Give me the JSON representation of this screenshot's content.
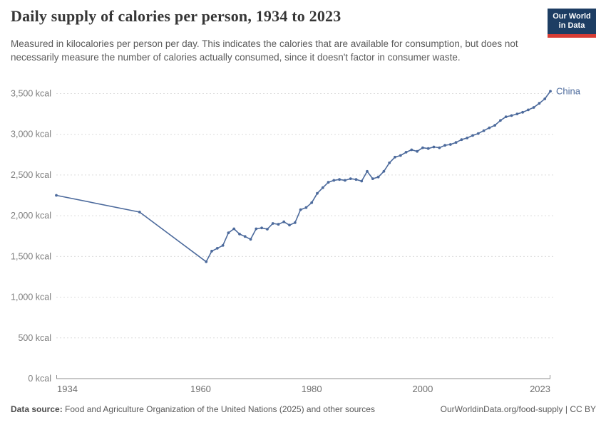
{
  "header": {
    "title": "Daily supply of calories per person, 1934 to 2023",
    "subtitle": "Measured in kilocalories per person per day. This indicates the calories that are available for consumption, but does not necessarily measure the number of calories actually consumed, since it doesn't factor in consumer waste.",
    "logo": {
      "line1": "Our World",
      "line2": "in Data"
    }
  },
  "colors": {
    "line": "#4c6a9c",
    "gridline": "#dcdcdc",
    "axis": "#8f8f8f",
    "y_label": "#7e7e7e",
    "x_label": "#6e6e6e",
    "logo_navy": "#1d3d63",
    "logo_red": "#d73c34"
  },
  "chart_data": {
    "type": "line",
    "title": "Daily supply of calories per person, 1934 to 2023",
    "unit": "kcal",
    "xlim": [
      1934,
      2023
    ],
    "ylim": [
      0,
      3500
    ],
    "x_ticks": [
      1934,
      1960,
      1980,
      2000,
      2023
    ],
    "y_ticks": [
      0,
      500,
      1000,
      1500,
      2000,
      2500,
      3000,
      3500
    ],
    "grid": "dashed-horizontal",
    "legend_position": "end-of-line-label",
    "end_label": "China",
    "series": [
      {
        "name": "China",
        "color": "#4c6a9c",
        "points": [
          [
            1934,
            2250
          ],
          [
            1949,
            2045
          ],
          [
            1961,
            1435
          ],
          [
            1962,
            1565
          ],
          [
            1963,
            1600
          ],
          [
            1964,
            1635
          ],
          [
            1965,
            1790
          ],
          [
            1966,
            1840
          ],
          [
            1967,
            1775
          ],
          [
            1968,
            1745
          ],
          [
            1969,
            1710
          ],
          [
            1970,
            1840
          ],
          [
            1971,
            1850
          ],
          [
            1972,
            1835
          ],
          [
            1973,
            1905
          ],
          [
            1974,
            1895
          ],
          [
            1975,
            1925
          ],
          [
            1976,
            1885
          ],
          [
            1977,
            1915
          ],
          [
            1978,
            2075
          ],
          [
            1979,
            2100
          ],
          [
            1980,
            2160
          ],
          [
            1981,
            2275
          ],
          [
            1982,
            2345
          ],
          [
            1983,
            2410
          ],
          [
            1984,
            2435
          ],
          [
            1985,
            2445
          ],
          [
            1986,
            2435
          ],
          [
            1987,
            2455
          ],
          [
            1988,
            2445
          ],
          [
            1989,
            2425
          ],
          [
            1990,
            2545
          ],
          [
            1991,
            2455
          ],
          [
            1992,
            2475
          ],
          [
            1993,
            2545
          ],
          [
            1994,
            2650
          ],
          [
            1995,
            2720
          ],
          [
            1996,
            2740
          ],
          [
            1997,
            2780
          ],
          [
            1998,
            2810
          ],
          [
            1999,
            2790
          ],
          [
            2000,
            2835
          ],
          [
            2001,
            2825
          ],
          [
            2002,
            2845
          ],
          [
            2003,
            2835
          ],
          [
            2004,
            2865
          ],
          [
            2005,
            2875
          ],
          [
            2006,
            2900
          ],
          [
            2007,
            2935
          ],
          [
            2008,
            2955
          ],
          [
            2009,
            2985
          ],
          [
            2010,
            3010
          ],
          [
            2011,
            3045
          ],
          [
            2012,
            3080
          ],
          [
            2013,
            3110
          ],
          [
            2014,
            3170
          ],
          [
            2015,
            3215
          ],
          [
            2016,
            3230
          ],
          [
            2017,
            3250
          ],
          [
            2018,
            3270
          ],
          [
            2019,
            3300
          ],
          [
            2020,
            3330
          ],
          [
            2021,
            3380
          ],
          [
            2022,
            3435
          ],
          [
            2023,
            3530
          ]
        ]
      }
    ]
  },
  "footer": {
    "source_label": "Data source:",
    "source_text": "Food and Agriculture Organization of the United Nations (2025) and other sources",
    "link_text": "OurWorldinData.org/food-supply | CC BY"
  }
}
